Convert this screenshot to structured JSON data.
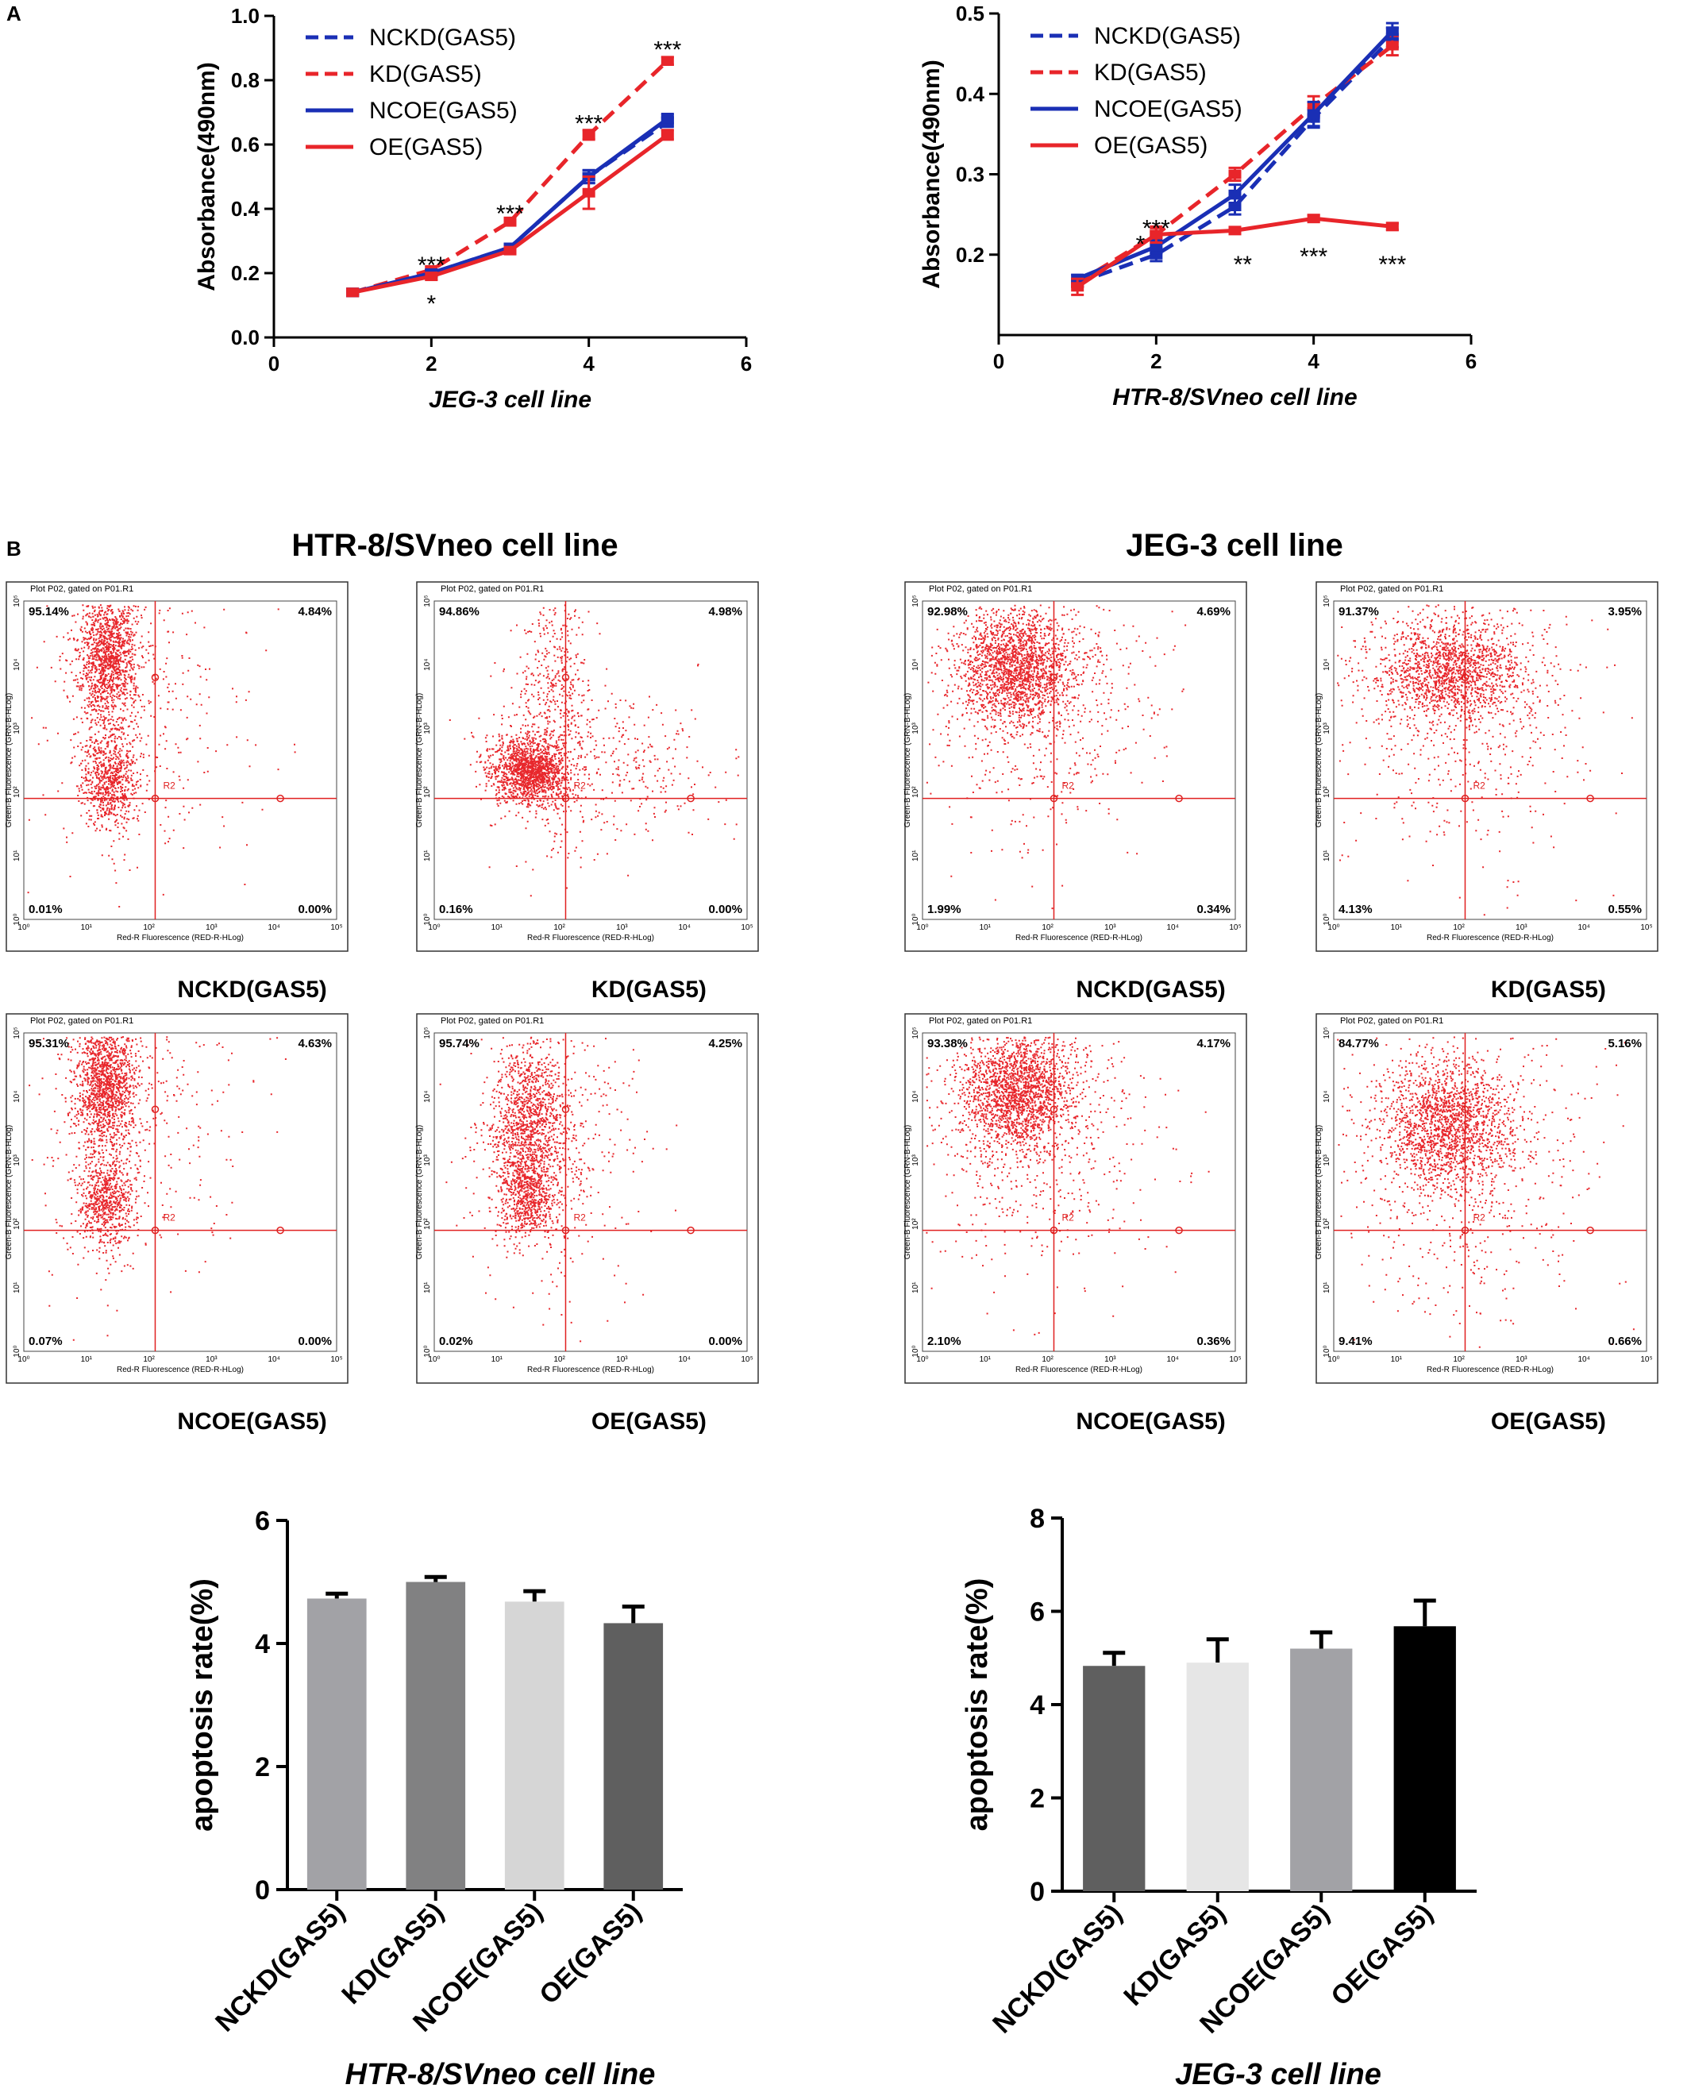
{
  "panel_labels": {
    "a": "A",
    "b": "B"
  },
  "flow": {
    "htr_title": "HTR-8/SVneo cell line",
    "jeg_title": "JEG-3 cell line",
    "plot_header": "Plot P02, gated on P01.R1",
    "x_axis_label": "Red-R Fluorescence (RED-R-HLog)",
    "y_axis_label": "Green-B Fluorescence (GRN-B-HLog)",
    "gate_label": "R2",
    "decade_labels": [
      "10⁰",
      "10¹",
      "10²",
      "10³",
      "10⁴",
      "10⁵"
    ],
    "plots": [
      {
        "name": "NCKD(GAS5)",
        "q_tl": "95.14%",
        "q_tr": "4.84%",
        "q_bl": "0.01%",
        "q_br": "0.00%"
      },
      {
        "name": "KD(GAS5)",
        "q_tl": "94.86%",
        "q_tr": "4.98%",
        "q_bl": "0.16%",
        "q_br": "0.00%"
      },
      {
        "name": "NCOE(GAS5)",
        "q_tl": "95.31%",
        "q_tr": "4.63%",
        "q_bl": "0.07%",
        "q_br": "0.00%"
      },
      {
        "name": "OE(GAS5)",
        "q_tl": "95.74%",
        "q_tr": "4.25%",
        "q_bl": "0.02%",
        "q_br": "0.00%"
      },
      {
        "name": "NCKD(GAS5)",
        "q_tl": "92.98%",
        "q_tr": "4.69%",
        "q_bl": "1.99%",
        "q_br": "0.34%"
      },
      {
        "name": "KD(GAS5)",
        "q_tl": "91.37%",
        "q_tr": "3.95%",
        "q_bl": "4.13%",
        "q_br": "0.55%"
      },
      {
        "name": "NCOE(GAS5)",
        "q_tl": "93.38%",
        "q_tr": "4.17%",
        "q_bl": "2.10%",
        "q_br": "0.36%"
      },
      {
        "name": "OE(GAS5)",
        "q_tl": "84.77%",
        "q_tr": "5.16%",
        "q_bl": "9.41%",
        "q_br": "0.66%"
      }
    ]
  },
  "colors": {
    "red": "#e8252a",
    "blue": "#1a2fb5",
    "dot": "#e8272c"
  },
  "chart_data": [
    {
      "type": "line",
      "title": "",
      "xlabel": "JEG-3 cell line",
      "ylabel": "Absorbance(490nm)",
      "xlim": [
        0,
        6
      ],
      "ylim": [
        0,
        1.0
      ],
      "x_ticks": [
        "0",
        "2",
        "4",
        "6"
      ],
      "y_ticks": [
        "0.0",
        "0.2",
        "0.4",
        "0.6",
        "0.8",
        "1.0"
      ],
      "x": [
        1,
        2,
        3,
        4,
        5
      ],
      "series": [
        {
          "name": "NCKD(GAS5)",
          "values": [
            0.14,
            0.2,
            0.28,
            0.5,
            0.67
          ],
          "err": [
            0.005,
            0.01,
            0.01,
            0.02,
            0.015
          ]
        },
        {
          "name": "KD(GAS5)",
          "values": [
            0.14,
            0.21,
            0.36,
            0.63,
            0.86
          ],
          "err": [
            0.005,
            0.01,
            0.012,
            0.015,
            0.012
          ]
        },
        {
          "name": "NCOE(GAS5)",
          "values": [
            0.14,
            0.2,
            0.28,
            0.5,
            0.68
          ],
          "err": [
            0.005,
            0.01,
            0.01,
            0.02,
            0.015
          ]
        },
        {
          "name": "OE(GAS5)",
          "values": [
            0.14,
            0.19,
            0.27,
            0.45,
            0.63
          ],
          "err": [
            0.005,
            0.01,
            0.01,
            0.05,
            0.015
          ]
        }
      ],
      "annotations": [
        {
          "x": 2,
          "y": 0.23,
          "text": "***"
        },
        {
          "x": 2,
          "y": 0.11,
          "text": "*"
        },
        {
          "x": 3,
          "y": 0.39,
          "text": "***"
        },
        {
          "x": 4,
          "y": 0.67,
          "text": "***"
        },
        {
          "x": 5,
          "y": 0.9,
          "text": "***"
        }
      ]
    },
    {
      "type": "line",
      "title": "",
      "xlabel": "HTR-8/SVneo cell line",
      "ylabel": "Absorbance(490nm)",
      "xlim": [
        0,
        6
      ],
      "ylim": [
        0.1,
        0.5
      ],
      "x_ticks": [
        "0",
        "2",
        "4",
        "6"
      ],
      "y_ticks": [
        "0.2",
        "0.3",
        "0.4",
        "0.5"
      ],
      "x": [
        1,
        2,
        3,
        4,
        5
      ],
      "series": [
        {
          "name": "NCKD(GAS5)",
          "values": [
            0.165,
            0.2,
            0.26,
            0.37,
            0.47
          ],
          "err": [
            0.005,
            0.008,
            0.01,
            0.012,
            0.012
          ]
        },
        {
          "name": "KD(GAS5)",
          "values": [
            0.165,
            0.225,
            0.3,
            0.385,
            0.46
          ],
          "err": [
            0.005,
            0.008,
            0.008,
            0.012,
            0.012
          ]
        },
        {
          "name": "NCOE(GAS5)",
          "values": [
            0.17,
            0.21,
            0.275,
            0.375,
            0.478
          ],
          "err": [
            0.005,
            0.008,
            0.012,
            0.015,
            0.01
          ]
        },
        {
          "name": "OE(GAS5)",
          "values": [
            0.16,
            0.225,
            0.23,
            0.245,
            0.235
          ],
          "err": [
            0.01,
            0.01,
            0.004,
            0.004,
            0.004
          ]
        }
      ],
      "annotations": [
        {
          "x": 2,
          "y": 0.235,
          "text": "***"
        },
        {
          "x": 1.8,
          "y": 0.215,
          "text": "*"
        },
        {
          "x": 3.1,
          "y": 0.19,
          "text": "**"
        },
        {
          "x": 4,
          "y": 0.2,
          "text": "***"
        },
        {
          "x": 5,
          "y": 0.19,
          "text": "***"
        }
      ]
    },
    {
      "type": "bar",
      "title": "",
      "xlabel": "HTR-8/SVneo cell line",
      "ylabel": "apoptosis rate(%)",
      "ylim": [
        0,
        6
      ],
      "y_ticks": [
        "0",
        "2",
        "4",
        "6"
      ],
      "categories": [
        "NCKD(GAS5)",
        "KD(GAS5)",
        "NCOE(GAS5)",
        "OE(GAS5)"
      ],
      "values": [
        4.73,
        5.0,
        4.68,
        4.33
      ],
      "err": [
        0.08,
        0.08,
        0.17,
        0.27
      ],
      "bar_colors": [
        "#a2a2a6",
        "#818182",
        "#d6d6d6",
        "#5f5f5f"
      ]
    },
    {
      "type": "bar",
      "title": "",
      "xlabel": "JEG-3 cell line",
      "ylabel": "apoptosis rate(%)",
      "ylim": [
        0,
        8
      ],
      "y_ticks": [
        "0",
        "2",
        "4",
        "6",
        "8"
      ],
      "categories": [
        "NCKD(GAS5)",
        "KD(GAS5)",
        "NCOE(GAS5)",
        "OE(GAS5)"
      ],
      "values": [
        4.83,
        4.9,
        5.2,
        5.68
      ],
      "err": [
        0.28,
        0.5,
        0.35,
        0.55
      ],
      "bar_colors": [
        "#5f5f5f",
        "#e6e6e6",
        "#a2a2a6",
        "#000000"
      ]
    }
  ]
}
